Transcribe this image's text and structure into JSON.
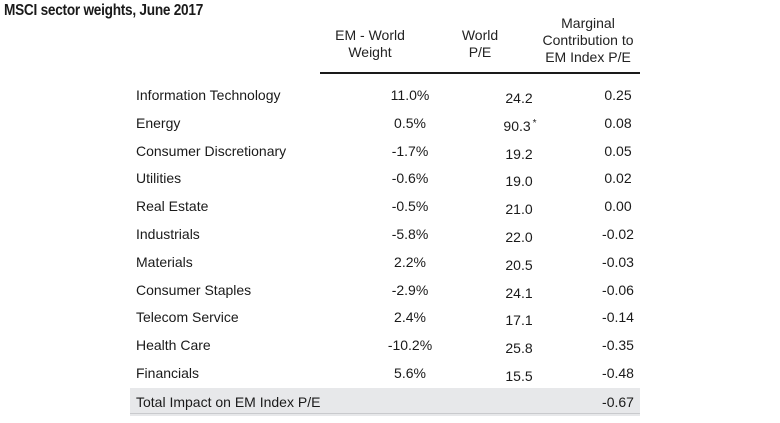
{
  "title": "MSCI sector weights, June 2017",
  "headers": {
    "weight": [
      "EM - World",
      "Weight"
    ],
    "pe": [
      "World",
      "P/E"
    ],
    "mc": [
      "Marginal",
      "Contribution to",
      "EM Index P/E"
    ]
  },
  "rows": [
    {
      "sector": "Information Technology",
      "weight": "11.0%",
      "pe": "24.2",
      "pe_note": "",
      "mc": "0.25"
    },
    {
      "sector": "Energy",
      "weight": "0.5%",
      "pe": "90.3",
      "pe_note": "*",
      "mc": "0.08"
    },
    {
      "sector": "Consumer Discretionary",
      "weight": "-1.7%",
      "pe": "19.2",
      "pe_note": "",
      "mc": "0.05"
    },
    {
      "sector": "Utilities",
      "weight": "-0.6%",
      "pe": "19.0",
      "pe_note": "",
      "mc": "0.02"
    },
    {
      "sector": "Real Estate",
      "weight": "-0.5%",
      "pe": "21.0",
      "pe_note": "",
      "mc": "0.00"
    },
    {
      "sector": "Industrials",
      "weight": "-5.8%",
      "pe": "22.0",
      "pe_note": "",
      "mc": "-0.02"
    },
    {
      "sector": "Materials",
      "weight": "2.2%",
      "pe": "20.5",
      "pe_note": "",
      "mc": "-0.03"
    },
    {
      "sector": "Consumer Staples",
      "weight": "-2.9%",
      "pe": "24.1",
      "pe_note": "",
      "mc": "-0.06"
    },
    {
      "sector": "Telecom Service",
      "weight": "2.4%",
      "pe": "17.1",
      "pe_note": "",
      "mc": "-0.14"
    },
    {
      "sector": "Health Care",
      "weight": "-10.2%",
      "pe": "25.8",
      "pe_note": "",
      "mc": "-0.35"
    },
    {
      "sector": "Financials",
      "weight": "5.6%",
      "pe": "15.5",
      "pe_note": "",
      "mc": "-0.48"
    }
  ],
  "total": {
    "label": "Total Impact on EM Index P/E",
    "mc": "-0.67"
  }
}
